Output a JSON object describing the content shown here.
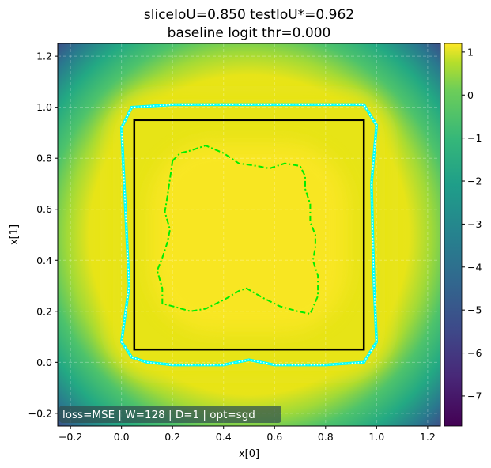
{
  "chart_data": {
    "type": "heatmap",
    "title_line1": "sliceIoU=0.850  testIoU*=0.962",
    "title_line2": "baseline logit thr=0.000",
    "xlabel": "x[0]",
    "ylabel": "x[1]",
    "xlim": [
      -0.25,
      1.25
    ],
    "ylim": [
      -0.25,
      1.25
    ],
    "xticks": [
      "−0.2",
      "0.0",
      "0.2",
      "0.4",
      "0.6",
      "0.8",
      "1.0",
      "1.2"
    ],
    "xtick_values": [
      -0.2,
      0.0,
      0.2,
      0.4,
      0.6,
      0.8,
      1.0,
      1.2
    ],
    "yticks": [
      "−0.2",
      "0.0",
      "0.2",
      "0.4",
      "0.6",
      "0.8",
      "1.0",
      "1.2"
    ],
    "ytick_values": [
      -0.2,
      0.0,
      0.2,
      0.4,
      0.6,
      0.8,
      1.0,
      1.2
    ],
    "grid": true,
    "colormap": "viridis",
    "colorbar": {
      "range": [
        -7.7,
        1.2
      ],
      "ticks": [
        "1",
        "0",
        "−1",
        "−2",
        "−3",
        "−4",
        "−5",
        "−6",
        "−7"
      ],
      "tick_values": [
        1,
        0,
        -1,
        -2,
        -3,
        -4,
        -5,
        -6,
        -7
      ]
    },
    "true_square": {
      "x0": 0.05,
      "y0": 0.05,
      "x1": 0.95,
      "y1": 0.95,
      "color": "#000000"
    },
    "threshold_contour": {
      "color": "#00ffff",
      "points": [
        [
          0.0,
          0.08
        ],
        [
          0.03,
          0.3
        ],
        [
          0.0,
          0.92
        ],
        [
          0.04,
          1.0
        ],
        [
          0.2,
          1.01
        ],
        [
          0.4,
          1.01
        ],
        [
          0.6,
          1.01
        ],
        [
          0.8,
          1.01
        ],
        [
          0.95,
          1.01
        ],
        [
          1.0,
          0.93
        ],
        [
          0.98,
          0.7
        ],
        [
          0.99,
          0.3
        ],
        [
          1.0,
          0.08
        ],
        [
          0.95,
          0.0
        ],
        [
          0.8,
          -0.01
        ],
        [
          0.6,
          -0.01
        ],
        [
          0.5,
          0.01
        ],
        [
          0.4,
          -0.01
        ],
        [
          0.2,
          -0.01
        ],
        [
          0.1,
          0.0
        ],
        [
          0.04,
          0.02
        ],
        [
          0.0,
          0.08
        ]
      ]
    },
    "slice_contour": {
      "color": "#00ee00",
      "points": [
        [
          0.2,
          0.79
        ],
        [
          0.23,
          0.82
        ],
        [
          0.27,
          0.83
        ],
        [
          0.33,
          0.85
        ],
        [
          0.4,
          0.82
        ],
        [
          0.46,
          0.78
        ],
        [
          0.53,
          0.77
        ],
        [
          0.58,
          0.76
        ],
        [
          0.64,
          0.78
        ],
        [
          0.7,
          0.77
        ],
        [
          0.72,
          0.73
        ],
        [
          0.72,
          0.68
        ],
        [
          0.74,
          0.62
        ],
        [
          0.74,
          0.55
        ],
        [
          0.76,
          0.5
        ],
        [
          0.76,
          0.45
        ],
        [
          0.75,
          0.4
        ],
        [
          0.77,
          0.34
        ],
        [
          0.77,
          0.26
        ],
        [
          0.74,
          0.19
        ],
        [
          0.69,
          0.2
        ],
        [
          0.62,
          0.22
        ],
        [
          0.56,
          0.25
        ],
        [
          0.49,
          0.29
        ],
        [
          0.46,
          0.28
        ],
        [
          0.41,
          0.25
        ],
        [
          0.33,
          0.21
        ],
        [
          0.27,
          0.2
        ],
        [
          0.2,
          0.22
        ],
        [
          0.16,
          0.23
        ],
        [
          0.16,
          0.29
        ],
        [
          0.14,
          0.36
        ],
        [
          0.16,
          0.41
        ],
        [
          0.18,
          0.47
        ],
        [
          0.19,
          0.52
        ],
        [
          0.17,
          0.59
        ],
        [
          0.18,
          0.65
        ],
        [
          0.19,
          0.72
        ],
        [
          0.2,
          0.79
        ]
      ]
    },
    "annotation": "loss=MSE | W=128 | D=1 | opt=sgd"
  }
}
